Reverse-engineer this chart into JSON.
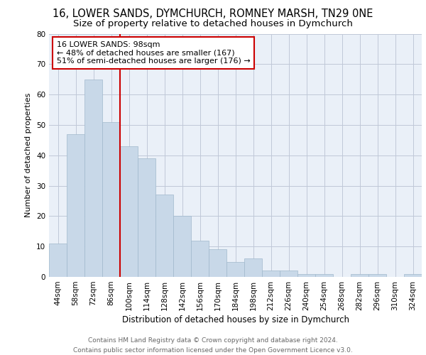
{
  "title1": "16, LOWER SANDS, DYMCHURCH, ROMNEY MARSH, TN29 0NE",
  "title2": "Size of property relative to detached houses in Dymchurch",
  "xlabel": "Distribution of detached houses by size in Dymchurch",
  "ylabel": "Number of detached properties",
  "bar_labels": [
    "44sqm",
    "58sqm",
    "72sqm",
    "86sqm",
    "100sqm",
    "114sqm",
    "128sqm",
    "142sqm",
    "156sqm",
    "170sqm",
    "184sqm",
    "198sqm",
    "212sqm",
    "226sqm",
    "240sqm",
    "254sqm",
    "268sqm",
    "282sqm",
    "296sqm",
    "310sqm",
    "324sqm"
  ],
  "bar_values": [
    11,
    47,
    65,
    51,
    43,
    39,
    27,
    20,
    12,
    9,
    5,
    6,
    2,
    2,
    1,
    1,
    0,
    1,
    1,
    0,
    1
  ],
  "bar_color": "#c8d8e8",
  "bar_edge_color": "#a0b8cc",
  "vline_color": "#cc0000",
  "annotation_text": "16 LOWER SANDS: 98sqm\n← 48% of detached houses are smaller (167)\n51% of semi-detached houses are larger (176) →",
  "annotation_box_color": "#ffffff",
  "annotation_box_edge_color": "#cc0000",
  "ylim": [
    0,
    80
  ],
  "yticks": [
    0,
    10,
    20,
    30,
    40,
    50,
    60,
    70,
    80
  ],
  "grid_color": "#c0c8d8",
  "background_color": "#eaf0f8",
  "footer_text": "Contains HM Land Registry data © Crown copyright and database right 2024.\nContains public sector information licensed under the Open Government Licence v3.0.",
  "title1_fontsize": 10.5,
  "title2_fontsize": 9.5,
  "xlabel_fontsize": 8.5,
  "ylabel_fontsize": 8,
  "tick_fontsize": 7.5,
  "annotation_fontsize": 8,
  "footer_fontsize": 6.5
}
